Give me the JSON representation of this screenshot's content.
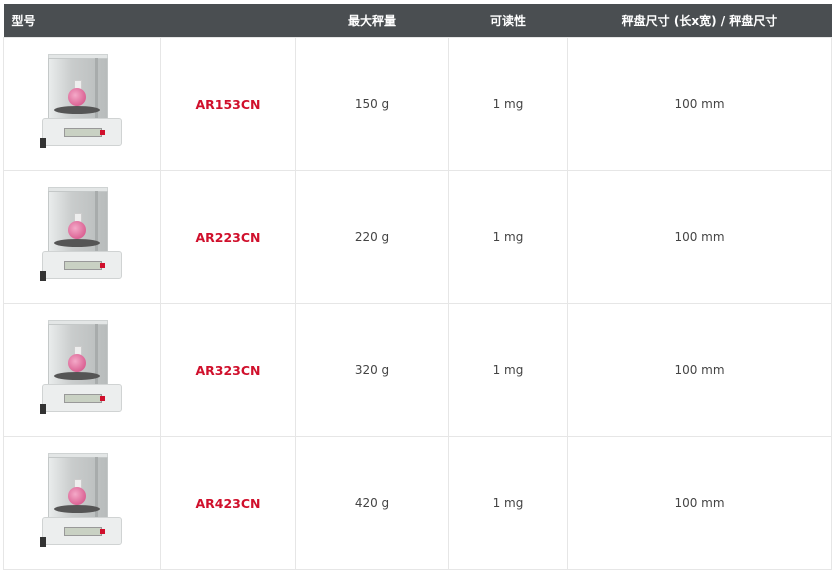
{
  "headers": [
    "型号",
    "",
    "最大秤量",
    "可读性",
    "秤盘尺寸 (长x宽) / 秤盘尺寸"
  ],
  "rows": [
    {
      "image": "balance-image",
      "model": "AR153CN",
      "capacity": "150 g",
      "readability": "1 mg",
      "pan": "100 mm"
    },
    {
      "image": "balance-image",
      "model": "AR223CN",
      "capacity": "220 g",
      "readability": "1 mg",
      "pan": "100 mm"
    },
    {
      "image": "balance-image",
      "model": "AR323CN",
      "capacity": "320 g",
      "readability": "1 mg",
      "pan": "100 mm"
    },
    {
      "image": "balance-image",
      "model": "AR423CN",
      "capacity": "420 g",
      "readability": "1 mg",
      "pan": "100 mm"
    }
  ],
  "colors": {
    "header_bg": "#4a4e51",
    "model_text": "#d0102c"
  }
}
